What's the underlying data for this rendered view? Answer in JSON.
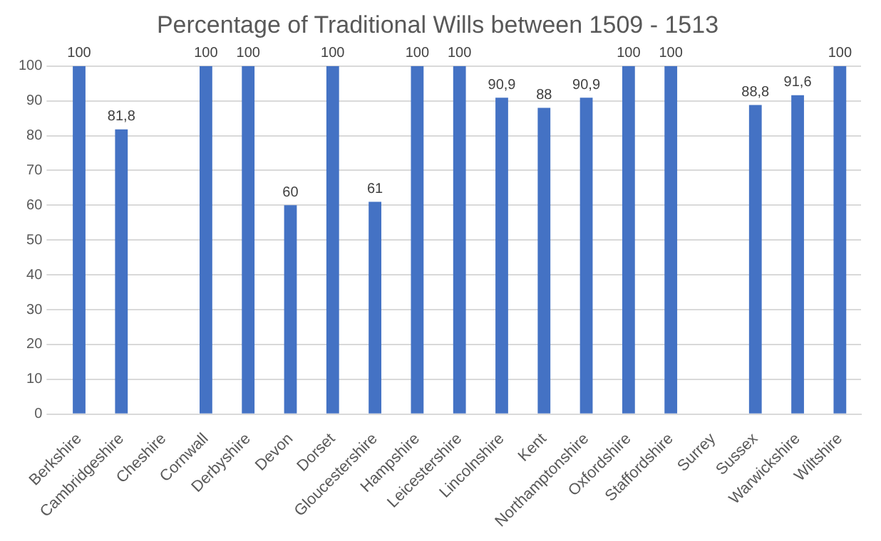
{
  "chart_data": {
    "type": "bar",
    "title": "Percentage of Traditional Wills between 1509 - 1513",
    "categories": [
      "Berkshire",
      "Cambridgeshire",
      "Cheshire",
      "Cornwall",
      "Derbyshire",
      "Devon",
      "Dorset",
      "Gloucestershire",
      "Hampshire",
      "Leicestershire",
      "Lincolnshire",
      "Kent",
      "Northamptonshire",
      "Oxfordshire",
      "Staffordshire",
      "Surrey",
      "Sussex",
      "Warwickshire",
      "Wiltshire"
    ],
    "values": [
      100,
      81.8,
      null,
      100,
      100,
      60,
      100,
      61,
      100,
      100,
      90.9,
      88,
      90.9,
      100,
      100,
      null,
      88.8,
      91.6,
      100
    ],
    "value_labels": [
      "100",
      "81,8",
      null,
      "100",
      "100",
      "60",
      "100",
      "61",
      "100",
      "100",
      "90,9",
      "88",
      "90,9",
      "100",
      "100",
      null,
      "88,8",
      "91,6",
      "100"
    ],
    "color": "#4472c4",
    "ylim": [
      0,
      100
    ],
    "yticks": [
      0,
      10,
      20,
      30,
      40,
      50,
      60,
      70,
      80,
      90,
      100
    ],
    "grid": "y",
    "legend": false
  }
}
